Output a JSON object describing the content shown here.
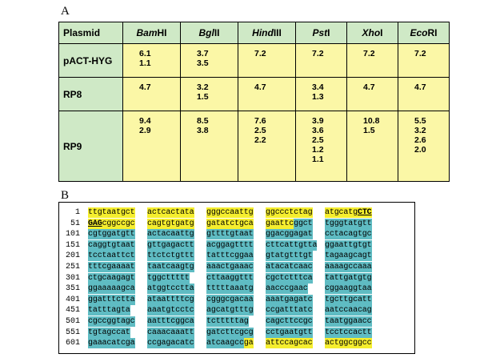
{
  "panel_a": {
    "label": "A",
    "header": {
      "plasmid": "Plasmid",
      "enzymes": [
        {
          "italic": "Bam",
          "suffix": "HI"
        },
        {
          "italic": "Bgl",
          "suffix": "II"
        },
        {
          "italic": "Hind",
          "suffix": "III"
        },
        {
          "italic": "Pst",
          "suffix": "I"
        },
        {
          "italic": "Xho",
          "suffix": "I"
        },
        {
          "italic": "Eco",
          "suffix": "RI"
        }
      ]
    },
    "rows": [
      {
        "plasmid": "pACT-HYG",
        "cells": [
          [
            "6.1",
            "1.1"
          ],
          [
            "3.7",
            "3.5"
          ],
          [
            "7.2"
          ],
          [
            "7.2"
          ],
          [
            "7.2"
          ],
          [
            "7.2"
          ]
        ]
      },
      {
        "plasmid": "RP8",
        "cells": [
          [
            "4.7"
          ],
          [
            "3.2",
            "1.5"
          ],
          [
            "4.7"
          ],
          [
            "3.4",
            "1.3"
          ],
          [
            "4.7"
          ],
          [
            "4.7"
          ]
        ]
      },
      {
        "plasmid": "RP9",
        "cells": [
          [
            "9.4",
            "2.9"
          ],
          [
            "8.5",
            "3.8"
          ],
          [
            "7.6",
            "2.5",
            "2.2"
          ],
          [
            "3.9",
            "3.6",
            "2.5",
            "1.2",
            "1.1"
          ],
          [
            "10.8",
            "1.5"
          ],
          [
            "5.5",
            "3.2",
            "2.6",
            "2.0"
          ]
        ]
      }
    ]
  },
  "panel_b": {
    "label": "B",
    "colors": {
      "yellow_highlight": "#f5ee2e",
      "cyan_highlight": "#5fbcc3"
    },
    "rows": [
      {
        "num": "1",
        "blocks": [
          [
            [
              "ttgtaatgct",
              "y"
            ]
          ],
          [
            [
              "actcactata",
              "y"
            ]
          ],
          [
            [
              "gggccaattg",
              "y"
            ]
          ],
          [
            [
              "ggccctctag",
              "y"
            ]
          ],
          [
            [
              "atgcatg",
              "y"
            ],
            [
              "CTC",
              "ys"
            ]
          ]
        ]
      },
      {
        "num": "51",
        "blocks": [
          [
            [
              "GAG",
              "ys"
            ],
            [
              "cggccgc",
              "y"
            ]
          ],
          [
            [
              "cagtgtgatg",
              "y"
            ]
          ],
          [
            [
              "gatatctgca",
              "y"
            ]
          ],
          [
            [
              "gaattc",
              "y"
            ],
            [
              "ggct",
              "c"
            ]
          ],
          [
            [
              "tgggtatgtt",
              "c"
            ]
          ]
        ]
      },
      {
        "num": "101",
        "blocks": [
          [
            [
              "cgtggatgtt",
              "c"
            ]
          ],
          [
            [
              "actacaattg",
              "c"
            ]
          ],
          [
            [
              "gttttgtaat",
              "c"
            ]
          ],
          [
            [
              "ggacggagat",
              "c"
            ]
          ],
          [
            [
              "cctacagtgc",
              "c"
            ]
          ]
        ]
      },
      {
        "num": "151",
        "blocks": [
          [
            [
              "caggtgtaat",
              "c"
            ]
          ],
          [
            [
              "gttgagactt",
              "c"
            ]
          ],
          [
            [
              "acggagtttt",
              "c"
            ]
          ],
          [
            [
              "cttcattgtta",
              "c"
            ]
          ],
          [
            [
              "ggaattgtgt",
              "c"
            ]
          ]
        ]
      },
      {
        "num": "201",
        "blocks": [
          [
            [
              "tcctaattct",
              "c"
            ]
          ],
          [
            [
              "ttctctgttt",
              "c"
            ]
          ],
          [
            [
              "tatttcggaa",
              "c"
            ]
          ],
          [
            [
              "gtatgtttgt",
              "c"
            ]
          ],
          [
            [
              "tagaagcagt",
              "c"
            ]
          ]
        ]
      },
      {
        "num": "251",
        "blocks": [
          [
            [
              "tttcgaaaat",
              "c"
            ]
          ],
          [
            [
              "taatcaagtg",
              "c"
            ]
          ],
          [
            [
              "aaactgaaac",
              "c"
            ]
          ],
          [
            [
              "atacatcaac",
              "c"
            ]
          ],
          [
            [
              "aaaagccaaa",
              "c"
            ]
          ]
        ]
      },
      {
        "num": "301",
        "blocks": [
          [
            [
              "ctgcaagagt",
              "c"
            ]
          ],
          [
            [
              "tggcttttt",
              "c"
            ]
          ],
          [
            [
              "cttaaggttt",
              "c"
            ]
          ],
          [
            [
              "cgctctttca",
              "c"
            ]
          ],
          [
            [
              "tattgatgtg",
              "c"
            ]
          ]
        ]
      },
      {
        "num": "351",
        "blocks": [
          [
            [
              "ggaaaaagca",
              "c"
            ]
          ],
          [
            [
              "atggtcctta",
              "c"
            ]
          ],
          [
            [
              "tttttaaatg",
              "c"
            ]
          ],
          [
            [
              "aacccgaac",
              "c"
            ]
          ],
          [
            [
              "cggaaggtaa",
              "c"
            ]
          ]
        ]
      },
      {
        "num": "401",
        "blocks": [
          [
            [
              "ggatttctta",
              "c"
            ]
          ],
          [
            [
              "ataattttcg",
              "c"
            ]
          ],
          [
            [
              "cgggcgacaa",
              "c"
            ]
          ],
          [
            [
              "aaatgagatc",
              "c"
            ]
          ],
          [
            [
              "tgcttgcatt",
              "c"
            ]
          ]
        ]
      },
      {
        "num": "451",
        "blocks": [
          [
            [
              "tatttagta",
              "c"
            ]
          ],
          [
            [
              "aaatgtcctc",
              "c"
            ]
          ],
          [
            [
              "agcatgtttg",
              "c"
            ]
          ],
          [
            [
              "ccgatttatc",
              "c"
            ]
          ],
          [
            [
              "aatccaacag",
              "c"
            ]
          ]
        ]
      },
      {
        "num": "501",
        "blocks": [
          [
            [
              "cgccggtagc",
              "c"
            ]
          ],
          [
            [
              "aatttcggca",
              "c"
            ]
          ],
          [
            [
              "tctttttag",
              "c"
            ]
          ],
          [
            [
              "cagcttccgc",
              "c"
            ]
          ],
          [
            [
              "taatggaacc",
              "c"
            ]
          ]
        ]
      },
      {
        "num": "551",
        "blocks": [
          [
            [
              "tgtagccat",
              "c"
            ]
          ],
          [
            [
              "caaacaaatt",
              "c"
            ]
          ],
          [
            [
              "gatcttcgcg",
              "c"
            ]
          ],
          [
            [
              "cctgaatgtt",
              "c"
            ]
          ],
          [
            [
              "tcctccactt",
              "c"
            ]
          ]
        ]
      },
      {
        "num": "601",
        "blocks": [
          [
            [
              "gaaacatcga",
              "c"
            ]
          ],
          [
            [
              "ccgagacatc",
              "c"
            ]
          ],
          [
            [
              "atcaagcc",
              "c"
            ],
            [
              "ga",
              "y"
            ]
          ],
          [
            [
              "attccagcac",
              "y"
            ]
          ],
          [
            [
              "actggcggcc",
              "y"
            ]
          ]
        ]
      }
    ]
  }
}
